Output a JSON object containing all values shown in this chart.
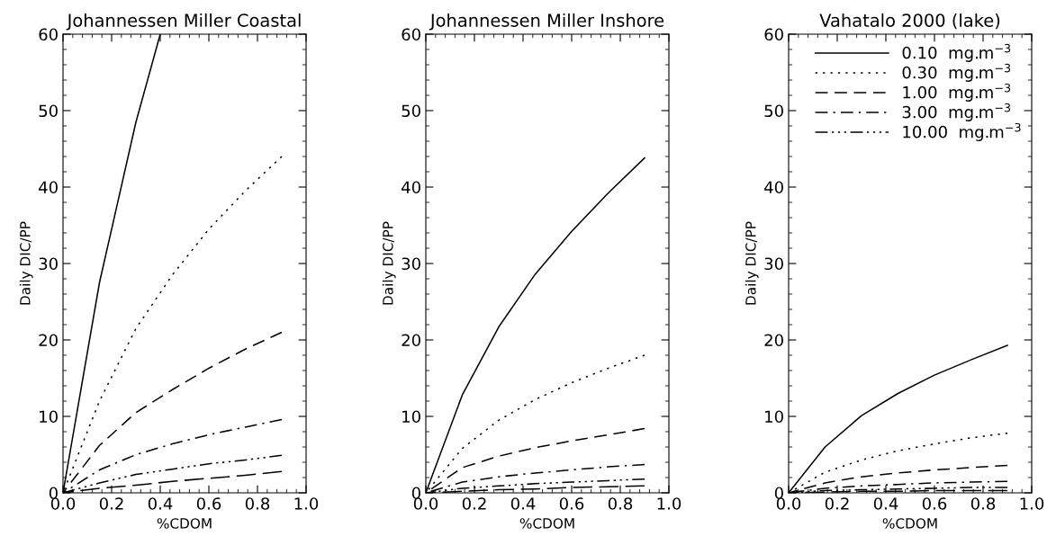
{
  "chart_data": [
    {
      "type": "line",
      "title": "Johannessen Miller Coastal",
      "xlabel": "%CDOM",
      "ylabel": "Daily DIC/PP",
      "x": [
        0,
        0.15,
        0.3,
        0.45,
        0.6,
        0.75,
        0.9
      ],
      "xlim": [
        0,
        1
      ],
      "xticks": [
        {
          "value": 0,
          "label": "0.0"
        },
        {
          "value": 0.2,
          "label": "0.2"
        },
        {
          "value": 0.4,
          "label": "0.4"
        },
        {
          "value": 0.6,
          "label": "0.6"
        },
        {
          "value": 0.8,
          "label": "0.8"
        },
        {
          "value": 1,
          "label": "1.0"
        }
      ],
      "ylim": [
        0,
        60
      ],
      "yticks": [
        0,
        10,
        20,
        30,
        40,
        50,
        60
      ],
      "grid": false,
      "legend": false,
      "series": [
        {
          "color": "#000000",
          "line_style": "solid",
          "x": [
            0,
            0.15,
            0.3,
            0.4
          ],
          "values": [
            0,
            27.5,
            48.5,
            60
          ]
        },
        {
          "color": "#000000",
          "line_style": "dotted",
          "values": [
            0,
            12,
            21.5,
            28.5,
            34.5,
            39.5,
            44
          ]
        },
        {
          "color": "#000000",
          "line_style": "dashed",
          "values": [
            0,
            6.2,
            10.5,
            13.5,
            16.3,
            18.8,
            21
          ]
        },
        {
          "color": "#000000",
          "line_style": "dashdot",
          "values": [
            0,
            3,
            5,
            6.4,
            7.6,
            8.6,
            9.6
          ]
        },
        {
          "color": "#000000",
          "line_style": "dashdotdotdot",
          "values": [
            0,
            1.3,
            2.4,
            3.1,
            3.8,
            4.3,
            4.9
          ]
        },
        {
          "color": "#000000",
          "line_style": "longdash",
          "values": [
            0,
            0.6,
            1,
            1.5,
            1.9,
            2.3,
            2.8
          ]
        }
      ]
    },
    {
      "type": "line",
      "title": "Johannessen Miller Inshore",
      "xlabel": "%CDOM",
      "ylabel": "Daily DIC/PP",
      "x": [
        0,
        0.15,
        0.3,
        0.45,
        0.6,
        0.75,
        0.9
      ],
      "xlim": [
        0,
        1
      ],
      "xticks": [
        {
          "value": 0,
          "label": "0.0"
        },
        {
          "value": 0.2,
          "label": "0.2"
        },
        {
          "value": 0.4,
          "label": "0.4"
        },
        {
          "value": 0.6,
          "label": "0.6"
        },
        {
          "value": 0.8,
          "label": "0.8"
        },
        {
          "value": 1,
          "label": "1.0"
        }
      ],
      "ylim": [
        0,
        60
      ],
      "yticks": [
        0,
        10,
        20,
        30,
        40,
        50,
        60
      ],
      "grid": false,
      "legend": false,
      "series": [
        {
          "color": "#000000",
          "line_style": "solid",
          "values": [
            0,
            12.8,
            21.7,
            28.6,
            34.2,
            39.2,
            43.8
          ]
        },
        {
          "color": "#000000",
          "line_style": "dotted",
          "values": [
            0,
            5.8,
            9.5,
            12.2,
            14.4,
            16.3,
            18
          ]
        },
        {
          "color": "#000000",
          "line_style": "dashed",
          "values": [
            0,
            3.3,
            4.8,
            5.9,
            6.8,
            7.6,
            8.4
          ]
        },
        {
          "color": "#000000",
          "line_style": "dashdot",
          "values": [
            0,
            1.4,
            2.1,
            2.6,
            3,
            3.4,
            3.7
          ]
        },
        {
          "color": "#000000",
          "line_style": "dashdotdotdot",
          "values": [
            0,
            0.6,
            0.9,
            1.2,
            1.4,
            1.6,
            1.8
          ]
        },
        {
          "color": "#000000",
          "line_style": "longdash",
          "values": [
            0,
            0.2,
            0.4,
            0.5,
            0.7,
            0.8,
            0.9
          ]
        }
      ]
    },
    {
      "type": "line",
      "title": "Vahatalo 2000 (lake)",
      "xlabel": "%CDOM",
      "ylabel": "Daily DIC/PP",
      "x": [
        0,
        0.15,
        0.3,
        0.45,
        0.6,
        0.75,
        0.9
      ],
      "xlim": [
        0,
        1
      ],
      "xticks": [
        {
          "value": 0,
          "label": "0.0"
        },
        {
          "value": 0.2,
          "label": "0.2"
        },
        {
          "value": 0.4,
          "label": "0.4"
        },
        {
          "value": 0.6,
          "label": "0.6"
        },
        {
          "value": 0.8,
          "label": "0.8"
        },
        {
          "value": 1,
          "label": "1.0"
        }
      ],
      "ylim": [
        0,
        60
      ],
      "yticks": [
        0,
        10,
        20,
        30,
        40,
        50,
        60
      ],
      "grid": false,
      "legend": "top right",
      "series": [
        {
          "name": "0.10  mg.m$^{−3}$",
          "color": "#000000",
          "line_style": "solid",
          "values": [
            0,
            6,
            10.1,
            13,
            15.4,
            17.4,
            19.3
          ]
        },
        {
          "name": "0.30  mg.m$^{−3}$",
          "color": "#000000",
          "line_style": "dotted",
          "values": [
            0,
            2.7,
            4.3,
            5.5,
            6.4,
            7.2,
            7.8
          ]
        },
        {
          "name": "1.00  mg.m$^{−3}$",
          "color": "#000000",
          "line_style": "dashed",
          "values": [
            0,
            1.3,
            2.1,
            2.6,
            3,
            3.3,
            3.6
          ]
        },
        {
          "name": "3.00  mg.m$^{−3}$",
          "color": "#000000",
          "line_style": "dashdot",
          "values": [
            0,
            0.6,
            0.9,
            1.1,
            1.3,
            1.4,
            1.5
          ]
        },
        {
          "name": "10.00  mg.m$^{−3}$",
          "color": "#000000",
          "line_style": "dashdotdotdot",
          "values": [
            0,
            0.3,
            0.4,
            0.5,
            0.6,
            0.7,
            0.7
          ]
        },
        {
          "color": "#000000",
          "line_style": "longdash",
          "values": [
            0,
            0.1,
            0.2,
            0.2,
            0.3,
            0.3,
            0.3
          ]
        }
      ]
    }
  ]
}
